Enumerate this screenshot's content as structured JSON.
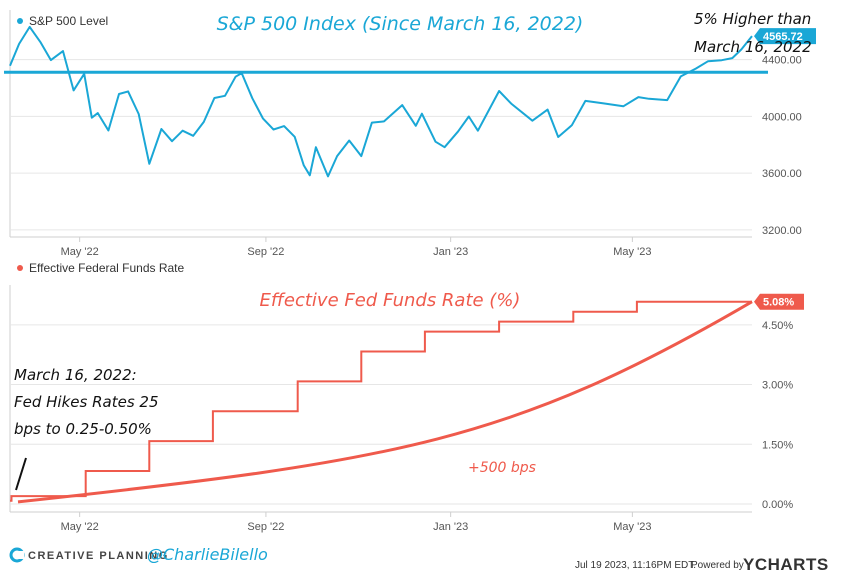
{
  "chart_data": [
    {
      "type": "line",
      "title": "S&P 500 Index (Since March 16, 2022)",
      "legend": "S&P 500 Level",
      "legend_position": "top-left",
      "color": "#1aa7d6",
      "x_ticks": [
        "May '22",
        "Sep '22",
        "Jan '23",
        "May '23"
      ],
      "y_ticks": [
        "4400.00",
        "4000.00",
        "3600.00",
        "3200.00"
      ],
      "ylim": [
        3150,
        4750
      ],
      "last_value_label": "4565.72",
      "reference_line": 4311,
      "annotation": [
        "5% Higher than",
        "March 16, 2022"
      ],
      "series": [
        {
          "x": [
            "2022-03-16",
            "2022-03-22",
            "2022-03-29",
            "2022-04-05",
            "2022-04-12",
            "2022-04-20",
            "2022-04-27",
            "2022-05-04",
            "2022-05-09",
            "2022-05-13",
            "2022-05-20",
            "2022-05-27",
            "2022-06-02",
            "2022-06-09",
            "2022-06-16",
            "2022-06-24",
            "2022-07-01",
            "2022-07-08",
            "2022-07-15",
            "2022-07-22",
            "2022-07-29",
            "2022-08-05",
            "2022-08-12",
            "2022-08-16",
            "2022-08-23",
            "2022-08-30",
            "2022-09-06",
            "2022-09-13",
            "2022-09-20",
            "2022-09-26",
            "2022-09-30",
            "2022-10-04",
            "2022-10-12",
            "2022-10-18",
            "2022-10-26",
            "2022-11-03",
            "2022-11-10",
            "2022-11-18",
            "2022-11-30",
            "2022-12-09",
            "2022-12-13",
            "2022-12-22",
            "2022-12-28",
            "2023-01-06",
            "2023-01-13",
            "2023-01-19",
            "2023-02-02",
            "2023-02-10",
            "2023-02-24",
            "2023-03-06",
            "2023-03-13",
            "2023-03-22",
            "2023-03-31",
            "2023-04-12",
            "2023-04-25",
            "2023-05-05",
            "2023-05-12",
            "2023-05-24",
            "2023-06-02",
            "2023-06-12",
            "2023-06-20",
            "2023-06-29",
            "2023-07-06",
            "2023-07-12",
            "2023-07-19"
          ],
          "values": [
            4357,
            4511,
            4631,
            4525,
            4397,
            4460,
            4183,
            4300,
            3991,
            4023,
            3901,
            4158,
            4176,
            4017,
            3666,
            3911,
            3825,
            3899,
            3863,
            3961,
            4130,
            4145,
            4280,
            4305,
            4128,
            3986,
            3908,
            3932,
            3856,
            3655,
            3585,
            3783,
            3577,
            3720,
            3830,
            3720,
            3956,
            3965,
            4080,
            3934,
            4019,
            3822,
            3783,
            3895,
            3999,
            3899,
            4179,
            4090,
            3970,
            4048,
            3855,
            3937,
            4109,
            4092,
            4071,
            4136,
            4124,
            4115,
            4282,
            4338,
            4389,
            4396,
            4411,
            4472,
            4565.72
          ]
        }
      ]
    },
    {
      "type": "line",
      "title": "Effective Fed Funds Rate (%)",
      "legend": "Effective Federal Funds Rate",
      "legend_position": "top-left",
      "color": "#ef5a4c",
      "x_ticks": [
        "May '22",
        "Sep '22",
        "Jan '23",
        "May '23"
      ],
      "y_ticks": [
        "4.50%",
        "3.00%",
        "1.50%",
        "0.00%"
      ],
      "ylim": [
        -0.2,
        5.5
      ],
      "last_value_label": "5.08%",
      "annotation": [
        "March 16, 2022:",
        "Fed Hikes Rates 25",
        "bps to 0.25-0.50%"
      ],
      "trend_label": "+500 bps",
      "series": [
        {
          "x": [
            "2022-03-16",
            "2022-03-17",
            "2022-05-05",
            "2022-06-16",
            "2022-07-28",
            "2022-09-22",
            "2022-11-03",
            "2022-12-15",
            "2023-02-02",
            "2023-03-23",
            "2023-05-04",
            "2023-07-19"
          ],
          "values": [
            0.08,
            0.2,
            0.83,
            1.58,
            2.33,
            3.08,
            3.83,
            4.33,
            4.58,
            4.83,
            5.08,
            5.08
          ]
        }
      ]
    }
  ],
  "footer": {
    "brand": "CREATIVE PLANNING",
    "handle": "@CharlieBilello",
    "timestamp": "Jul 19 2023, 11:16PM EDT.",
    "powered": "Powered by",
    "ycharts": "YCHARTS"
  }
}
